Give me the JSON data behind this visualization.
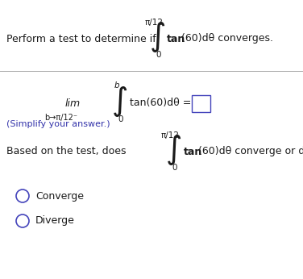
{
  "bg_color": "#ffffff",
  "text_color_blue": "#3333aa",
  "text_color_dark": "#1a1a1a",
  "line_color": "#aaaaaa",
  "fig_width": 3.76,
  "fig_height": 3.46,
  "dpi": 100,
  "integral_upper": "π/12",
  "integral_lower": "0",
  "b_label": "b",
  "lim_text": "lim",
  "lim_sub": "b→π/12⁻",
  "simplify_text": "(Simplify your answer.)",
  "converge_text": "Converge",
  "diverge_text": "Diverge",
  "circle_color": "#4444bb",
  "fs_main": 9.0,
  "fs_small": 7.5,
  "fs_integral": 20
}
